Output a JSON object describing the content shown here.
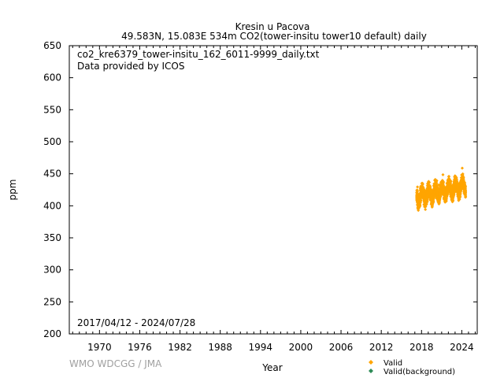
{
  "chart_data": {
    "type": "scatter",
    "title": "Kresin u Pacova",
    "subtitle": "49.583N, 15.083E 534m    CO2(tower-insitu tower10 default) daily",
    "xlabel": "Year",
    "ylabel": "ppm",
    "xlim": [
      1965.5,
      2026.3
    ],
    "ylim": [
      200,
      650
    ],
    "x_ticks": [
      1970,
      1976,
      1982,
      1988,
      1994,
      2000,
      2006,
      2012,
      2018,
      2024
    ],
    "y_ticks": [
      200,
      250,
      300,
      350,
      400,
      450,
      500,
      550,
      600,
      650
    ],
    "annotations": {
      "file": "co2_kre6379_tower-insitu_162_6011-9999_daily.txt",
      "provider": "Data provided by ICOS",
      "period": "2017/04/12 - 2024/07/28"
    },
    "credit": "WMO WDCGG / JMA",
    "legend_position": "bottom-right",
    "series": [
      {
        "name": "Valid",
        "color": "#ffa500",
        "marker": "diamond",
        "trend": {
          "start_year": 2017.28,
          "end_year": 2024.57,
          "start_ppm": 413,
          "end_ppm": 431
        },
        "seasonal_amplitude_ppm": 9,
        "x": [
          2017.3,
          2017.5,
          2017.7,
          2017.9,
          2018.1,
          2018.3,
          2018.5,
          2018.7,
          2018.9,
          2019.1,
          2019.3,
          2019.5,
          2019.7,
          2019.9,
          2020.1,
          2020.3,
          2020.5,
          2020.7,
          2020.9,
          2021.1,
          2021.3,
          2021.5,
          2021.7,
          2021.9,
          2022.1,
          2022.3,
          2022.5,
          2022.7,
          2022.9,
          2023.1,
          2023.3,
          2023.5,
          2023.7,
          2023.9,
          2024.1,
          2024.3,
          2024.5
        ],
        "y": [
          418,
          406,
          410,
          428,
          426,
          410,
          407,
          420,
          432,
          428,
          412,
          409,
          424,
          433,
          430,
          414,
          410,
          425,
          436,
          432,
          416,
          411,
          428,
          440,
          434,
          418,
          414,
          430,
          442,
          436,
          420,
          417,
          432,
          446,
          440,
          424,
          427
        ]
      },
      {
        "name": "Valid(background)",
        "color": "#2e8b57",
        "marker": "diamond",
        "x": [],
        "y": []
      }
    ]
  }
}
